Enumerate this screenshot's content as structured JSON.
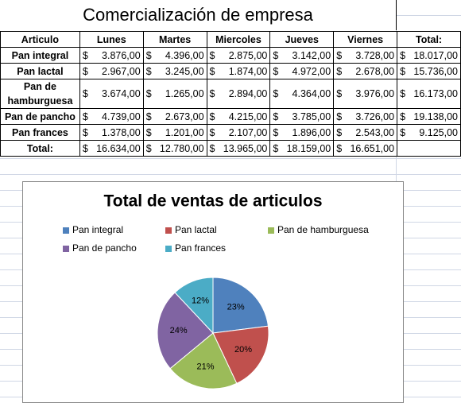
{
  "sheet": {
    "title": "Comercialización de empresa",
    "currency": "$",
    "table": {
      "header": [
        "Articulo",
        "Lunes",
        "Martes",
        "Miercoles",
        "Jueves",
        "Viernes",
        "Total:"
      ],
      "rows": [
        {
          "name": "Pan integral",
          "values": [
            "3.876,00",
            "4.396,00",
            "2.875,00",
            "3.142,00",
            "3.728,00"
          ],
          "total": "18.017,00"
        },
        {
          "name": "Pan lactal",
          "values": [
            "2.967,00",
            "3.245,00",
            "1.874,00",
            "4.972,00",
            "2.678,00"
          ],
          "total": "15.736,00"
        },
        {
          "name": "Pan de hamburguesa",
          "values": [
            "3.674,00",
            "1.265,00",
            "2.894,00",
            "4.364,00",
            "3.976,00"
          ],
          "total": "16.173,00"
        },
        {
          "name": "Pan de pancho",
          "values": [
            "4.739,00",
            "2.673,00",
            "4.215,00",
            "3.785,00",
            "3.726,00"
          ],
          "total": "19.138,00"
        },
        {
          "name": "Pan frances",
          "values": [
            "1.378,00",
            "1.201,00",
            "2.107,00",
            "1.896,00",
            "2.543,00"
          ],
          "total": "9.125,00"
        }
      ],
      "totals": {
        "label": "Total:",
        "values": [
          "16.634,00",
          "12.780,00",
          "13.965,00",
          "18.159,00",
          "16.651,00"
        ]
      }
    }
  },
  "chart_data": {
    "type": "pie",
    "title": "Total de ventas de articulos",
    "categories": [
      "Pan integral",
      "Pan lactal",
      "Pan de hamburguesa",
      "Pan de pancho",
      "Pan frances"
    ],
    "values": [
      23,
      20,
      21,
      24,
      12
    ],
    "value_labels": [
      "23%",
      "20%",
      "21%",
      "24%",
      "12%"
    ],
    "colors": [
      "#4f81bd",
      "#c0504d",
      "#9bbb59",
      "#8064a2",
      "#4bacc6"
    ]
  }
}
